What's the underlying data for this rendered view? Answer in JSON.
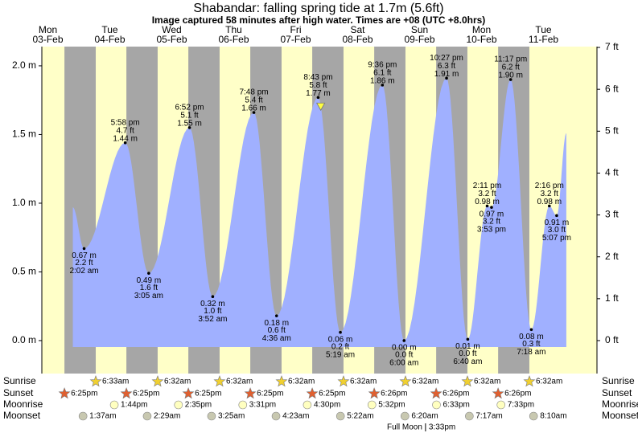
{
  "chart_data": {
    "type": "tide",
    "title": "Shabandar: falling  spring tide at 1.7m (5.6ft)",
    "subtitle": "Image captured 58 minutes after high water. Times are +08 (UTC +8.0hrs)",
    "current_level": 1.7,
    "ylim": [
      -0.24,
      2.14
    ],
    "yticks": [
      {
        "value": 0,
        "label": "0.0 m"
      },
      {
        "value": 0.5,
        "label": "0.5 m"
      },
      {
        "value": 1,
        "label": "1.0 m"
      },
      {
        "value": 1.5,
        "label": "1.5 m"
      },
      {
        "value": 2,
        "label": "2.0 m"
      }
    ],
    "y2lim": [
      -0.787,
      7.02
    ],
    "y2ticks": [
      {
        "value": 0,
        "label": "0 ft"
      },
      {
        "value": 1,
        "label": "1 ft"
      },
      {
        "value": 2,
        "label": "2 ft"
      },
      {
        "value": 3,
        "label": "3 ft"
      },
      {
        "value": 4,
        "label": "4 ft"
      },
      {
        "value": 5,
        "label": "5 ft"
      },
      {
        "value": 6,
        "label": "6 ft"
      },
      {
        "value": 7,
        "label": "7 ft"
      }
    ],
    "curve_start": 0.97,
    "curve_end": 1.51,
    "row_labels": [
      "Sunrise",
      "Sunset",
      "Moonrise",
      "Moonset"
    ],
    "full_moon_label": "Full Moon",
    "colors": {
      "day": "#ffffc8",
      "night": "#a6a6a6",
      "water": "#a0b0ff",
      "date": "#e00000"
    },
    "days": [
      {
        "weekday": "Mon",
        "date": "03-Feb",
        "sunset": "6:25pm"
      },
      {
        "weekday": "Tue",
        "date": "04-Feb",
        "sunrise": "6:33am",
        "sunset": "6:25pm",
        "moonrise": "1:44pm",
        "moonset": "1:37am",
        "tides": [
          {
            "time": "2:02 am",
            "m": 0.67,
            "m_label": "0.67 m",
            "ft": 2.2,
            "ft_label": "2.2 ft"
          },
          {
            "time": "5:58 pm",
            "m": 1.44,
            "m_label": "1.44 m",
            "ft": 4.7,
            "ft_label": "4.7 ft"
          }
        ]
      },
      {
        "weekday": "Wed",
        "date": "05-Feb",
        "sunrise": "6:32am",
        "sunset": "6:25pm",
        "moonrise": "2:35pm",
        "moonset": "2:29am",
        "tides": [
          {
            "time": "3:05 am",
            "m": 0.49,
            "m_label": "0.49 m",
            "ft": 1.6,
            "ft_label": "1.6 ft"
          },
          {
            "time": "6:52 pm",
            "m": 1.55,
            "m_label": "1.55 m",
            "ft": 5.1,
            "ft_label": "5.1 ft"
          }
        ]
      },
      {
        "weekday": "Thu",
        "date": "06-Feb",
        "sunrise": "6:32am",
        "sunset": "6:25pm",
        "moonrise": "3:31pm",
        "moonset": "3:25am",
        "tides": [
          {
            "time": "3:52 am",
            "m": 0.32,
            "m_label": "0.32 m",
            "ft": 1.0,
            "ft_label": "1.0 ft"
          },
          {
            "time": "7:48 pm",
            "m": 1.66,
            "m_label": "1.66 m",
            "ft": 5.4,
            "ft_label": "5.4 ft"
          }
        ]
      },
      {
        "weekday": "Fri",
        "date": "07-Feb",
        "sunrise": "6:32am",
        "sunset": "6:25pm",
        "moonrise": "4:30pm",
        "moonset": "4:23am",
        "tides": [
          {
            "time": "4:36 am",
            "m": 0.18,
            "m_label": "0.18 m",
            "ft": 0.6,
            "ft_label": "0.6 ft"
          },
          {
            "time": "8:43 pm",
            "m": 1.77,
            "m_label": "1.77 m",
            "ft": 5.8,
            "ft_label": "5.8 ft"
          }
        ]
      },
      {
        "weekday": "Sat",
        "date": "08-Feb",
        "sunrise": "6:32am",
        "sunset": "6:26pm",
        "moonrise": "5:32pm",
        "moonset": "5:22am",
        "tides": [
          {
            "time": "5:19 am",
            "m": 0.06,
            "m_label": "0.06 m",
            "ft": 0.2,
            "ft_label": "0.2 ft"
          },
          {
            "time": "9:36 pm",
            "m": 1.86,
            "m_label": "1.86 m",
            "ft": 6.1,
            "ft_label": "6.1 ft"
          }
        ]
      },
      {
        "weekday": "Sun",
        "date": "09-Feb",
        "sunrise": "6:32am",
        "sunset": "6:26pm",
        "moonrise": "6:33pm",
        "moonset": "6:20am",
        "full_moon": "3:33pm",
        "tides": [
          {
            "time": "6:00 am",
            "m": 0.0,
            "m_label": "0.00 m",
            "ft": 0.0,
            "ft_label": "0.0 ft"
          },
          {
            "time": "10:27 pm",
            "m": 1.91,
            "m_label": "1.91 m",
            "ft": 6.3,
            "ft_label": "6.3 ft"
          }
        ]
      },
      {
        "weekday": "Mon",
        "date": "10-Feb",
        "sunrise": "6:32am",
        "sunset": "6:26pm",
        "moonrise": "7:33pm",
        "moonset": "7:17am",
        "tides": [
          {
            "time": "6:40 am",
            "m": 0.01,
            "m_label": "0.01 m",
            "ft": 0.0,
            "ft_label": "0.0 ft"
          },
          {
            "time": "2:11 pm",
            "m": 0.98,
            "m_label": "0.98 m",
            "ft": 3.2,
            "ft_label": "3.2 ft"
          },
          {
            "time": "3:53 pm",
            "m": 0.97,
            "m_label": "0.97 m",
            "ft": 3.2,
            "ft_label": "3.2 ft"
          },
          {
            "time": "11:17 pm",
            "m": 1.9,
            "m_label": "1.90 m",
            "ft": 6.2,
            "ft_label": "6.2 ft"
          }
        ]
      },
      {
        "weekday": "Tue",
        "date": "11-Feb",
        "sunrise": "6:32am",
        "moonset": "8:10am",
        "tides": [
          {
            "time": "7:18 am",
            "m": 0.08,
            "m_label": "0.08 m",
            "ft": 0.3,
            "ft_label": "0.3 ft"
          },
          {
            "time": "2:16 pm",
            "m": 0.98,
            "m_label": "0.98 m",
            "ft": 3.2,
            "ft_label": "3.2 ft"
          },
          {
            "time": "5:07 pm",
            "m": 0.91,
            "m_label": "0.91 m",
            "ft": 3.0,
            "ft_label": "3.0 ft"
          }
        ]
      }
    ]
  }
}
